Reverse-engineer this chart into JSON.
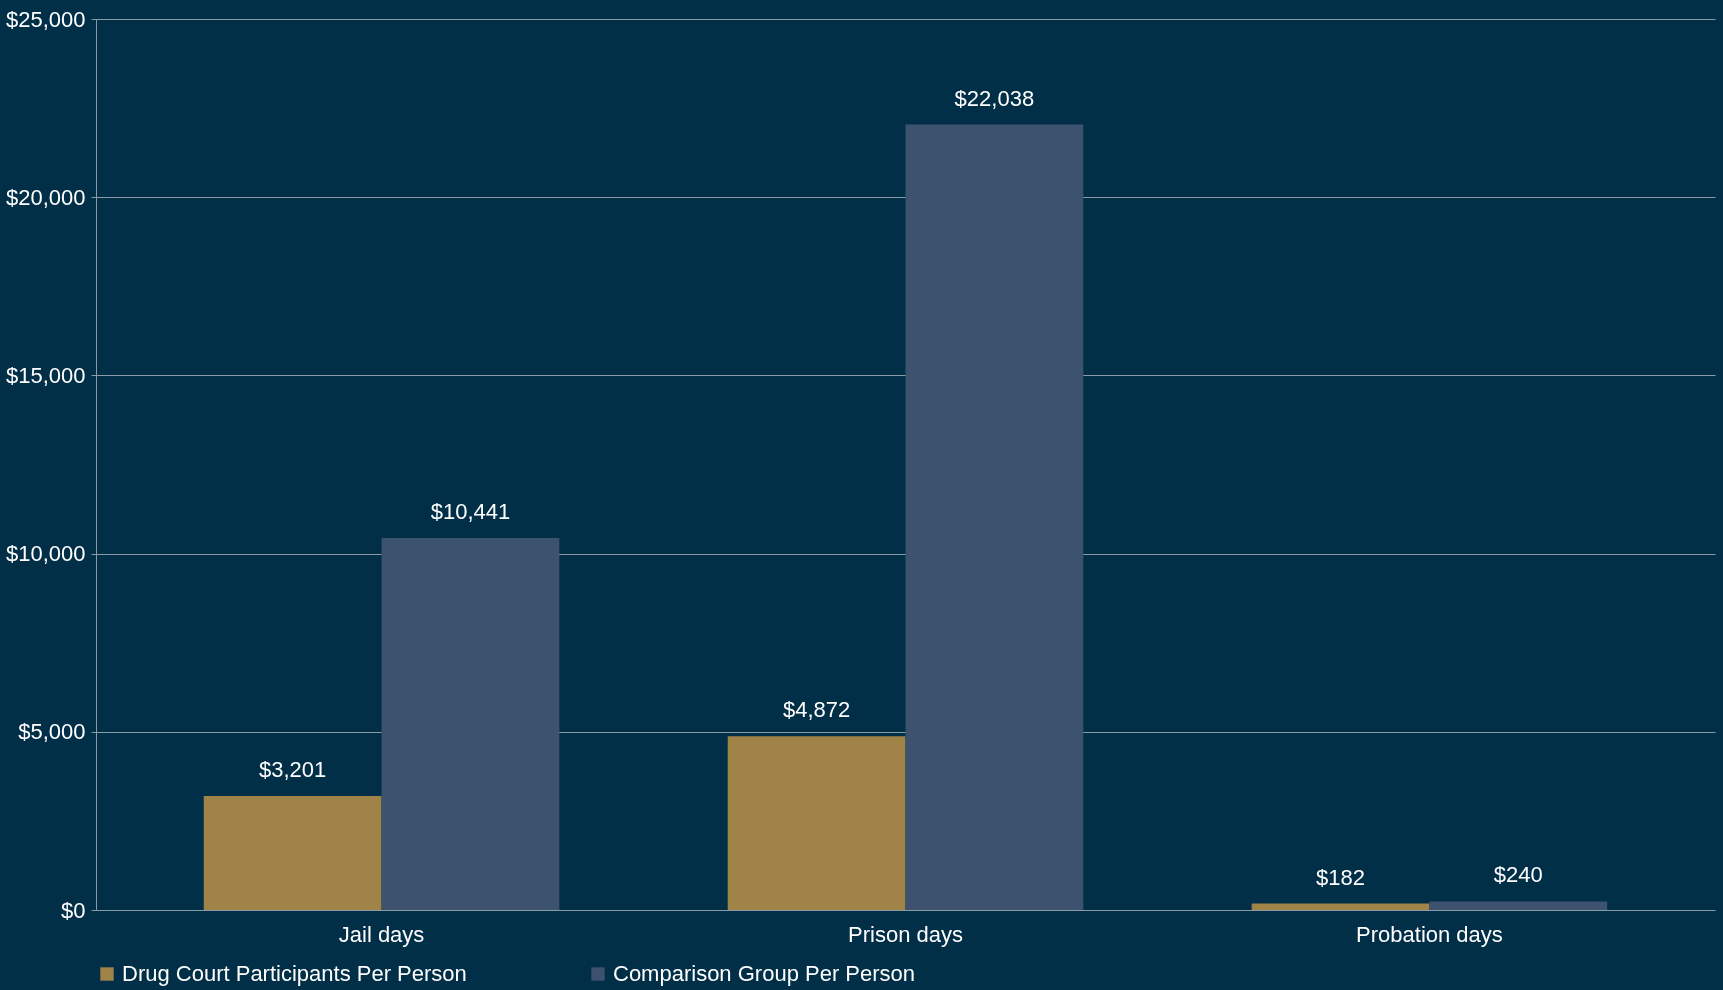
{
  "chart_data": {
    "type": "bar",
    "categories": [
      "Jail days",
      "Prison days",
      "Probation days"
    ],
    "series": [
      {
        "name": "Drug Court Participants Per Person",
        "color": "#a08447",
        "values": [
          3201,
          4872,
          182
        ],
        "value_labels": [
          "$3,201",
          "$4,872",
          "$182"
        ]
      },
      {
        "name": "Comparison Group Per Person",
        "color": "#3d526e",
        "values": [
          10441,
          22038,
          240
        ],
        "value_labels": [
          "$10,441",
          "$22,038",
          "$240"
        ]
      }
    ],
    "ylim": [
      0,
      25000
    ],
    "yticks": [
      {
        "value": 0,
        "label": "$0"
      },
      {
        "value": 5000,
        "label": "$5,000"
      },
      {
        "value": 10000,
        "label": "$10,000"
      },
      {
        "value": 15000,
        "label": "$15,000"
      },
      {
        "value": 20000,
        "label": "$20,000"
      },
      {
        "value": 25000,
        "label": "$25,000"
      }
    ],
    "grid": "y",
    "legend": "bottom"
  }
}
